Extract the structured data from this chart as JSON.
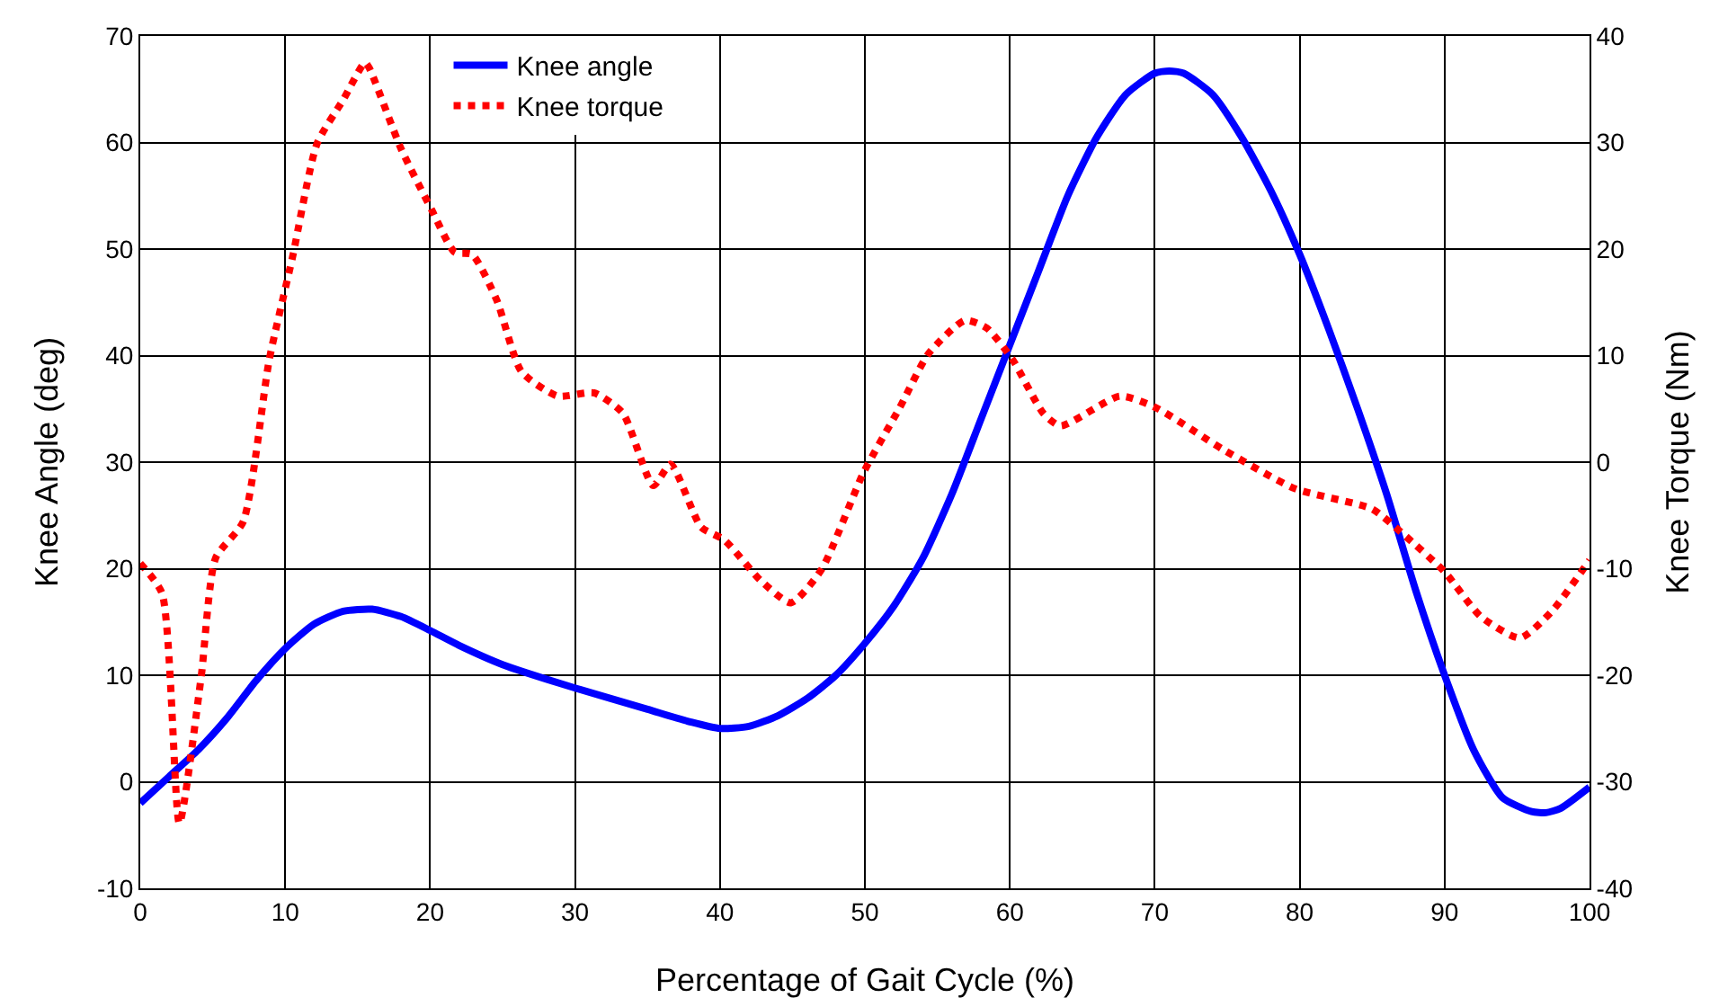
{
  "chart_data": {
    "type": "line",
    "xlabel": "Percentage of Gait Cycle (%)",
    "ylabel": "Knee Angle (deg)",
    "y2label": "Knee Torque (Nm)",
    "xlim": [
      0,
      100
    ],
    "xticks": [
      0,
      10,
      20,
      30,
      40,
      50,
      60,
      70,
      80,
      90,
      100
    ],
    "ylim": [
      -10,
      70
    ],
    "yticks": [
      -10,
      0,
      10,
      20,
      30,
      40,
      50,
      60,
      70
    ],
    "y2lim": [
      -40,
      40
    ],
    "y2ticks": [
      -40,
      -30,
      -20,
      -10,
      0,
      10,
      20,
      30,
      40
    ],
    "grid": true,
    "legend": "top",
    "marker": "none",
    "series": [
      {
        "name": "Knee angle",
        "color": "#0000ff",
        "line_style": "solid",
        "x": [
          0,
          2,
          4,
          6,
          8,
          10,
          12,
          14,
          16,
          18,
          20,
          22,
          25,
          30,
          35,
          38,
          40,
          42,
          44,
          46,
          48,
          50,
          52,
          54,
          56,
          58,
          60,
          62,
          64,
          66,
          68,
          70,
          71,
          72,
          74,
          76,
          78,
          80,
          82,
          84,
          86,
          88,
          90,
          92,
          94,
          96,
          97,
          98,
          100
        ],
        "values": [
          -2,
          0.5,
          3,
          6,
          9.5,
          12.5,
          14.8,
          16,
          16.2,
          15.5,
          14.2,
          12.8,
          11,
          8.8,
          6.8,
          5.6,
          5,
          5.2,
          6.2,
          7.8,
          10,
          13,
          16.5,
          21,
          27,
          34,
          41,
          48,
          55,
          60.5,
          64.5,
          66.5,
          66.7,
          66.5,
          64.5,
          60.5,
          55.5,
          49.5,
          42.5,
          35,
          27,
          18,
          10,
          3,
          -1.5,
          -2.8,
          -2.9,
          -2.5,
          -0.5
        ]
      },
      {
        "name": "Knee torque",
        "color": "#ff0000",
        "line_style": "dotted",
        "axis": "y2",
        "x": [
          0,
          1.5,
          2.7,
          4.2,
          5.2,
          7.1,
          8.9,
          10.5,
          12.2,
          14,
          15.5,
          15.8,
          18,
          20.1,
          21.7,
          22.9,
          24.6,
          26.3,
          28.8,
          31.3,
          33.3,
          35.4,
          36.6,
          38.7,
          40.3,
          42.8,
          44.9,
          47,
          49.9,
          52.4,
          54.4,
          56.9,
          58.4,
          60.2,
          62.3,
          63.5,
          67.6,
          70.1,
          74.7,
          79.7,
          85,
          87.1,
          90,
          92.5,
          95.2,
          97.4,
          100
        ],
        "values": [
          -9.5,
          -12.3,
          -33.9,
          -20.2,
          -9,
          -5.6,
          9.6,
          19.2,
          29.9,
          34,
          37.5,
          37,
          29.4,
          23.7,
          19.7,
          19.5,
          15.2,
          8.5,
          6.2,
          6.5,
          4.6,
          -2.2,
          -0.2,
          -6.1,
          -7.3,
          -11.1,
          -13.2,
          -10.1,
          -1,
          5.1,
          10.2,
          13.3,
          12.6,
          9.6,
          4.6,
          3.4,
          6.2,
          5.1,
          1.2,
          -2.5,
          -4.4,
          -6.7,
          -10.3,
          -14.5,
          -16.5,
          -14,
          -9.2
        ]
      }
    ]
  }
}
